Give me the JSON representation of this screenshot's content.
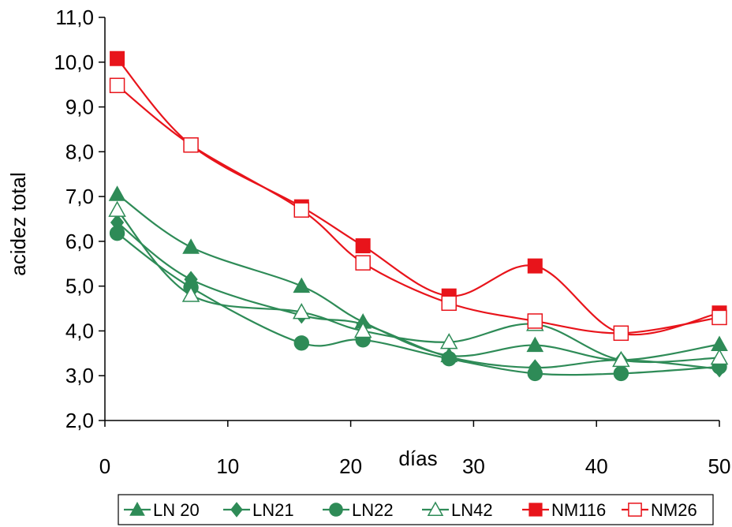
{
  "chart_data": {
    "type": "line",
    "xlabel": "días",
    "ylabel": "acidez total",
    "xlim": [
      0,
      50
    ],
    "ylim": [
      2.0,
      11.0
    ],
    "x_ticks": [
      "0",
      "10",
      "20",
      "30",
      "40",
      "50"
    ],
    "y_ticks": [
      "2,0",
      "3,0",
      "4,0",
      "5,0",
      "6,0",
      "7,0",
      "8,0",
      "9,0",
      "10,0",
      "11,0"
    ],
    "x": [
      1,
      7,
      16,
      21,
      28,
      35,
      42,
      50
    ],
    "legend_position": "bottom",
    "grid": false,
    "series": [
      {
        "name": "LN 20",
        "color": "#2e8b57",
        "marker": "triangle",
        "filled": true,
        "values": [
          7.05,
          5.87,
          5.0,
          4.2,
          3.45,
          3.68,
          3.35,
          3.7
        ]
      },
      {
        "name": "LN21",
        "color": "#2e8b57",
        "marker": "diamond",
        "filled": true,
        "values": [
          6.42,
          5.15,
          4.35,
          4.15,
          3.42,
          3.18,
          3.35,
          3.15
        ]
      },
      {
        "name": "LN22",
        "color": "#2e8b57",
        "marker": "circle",
        "filled": true,
        "values": [
          6.18,
          4.97,
          3.73,
          3.8,
          3.38,
          3.05,
          3.05,
          3.2
        ]
      },
      {
        "name": "LN42",
        "color": "#2e8b57",
        "marker": "triangle",
        "filled": false,
        "values": [
          6.7,
          4.8,
          4.42,
          4.0,
          3.75,
          4.15,
          3.35,
          3.4
        ]
      },
      {
        "name": "NM116",
        "color": "#e8141b",
        "marker": "square",
        "filled": true,
        "values": [
          10.08,
          8.15,
          6.77,
          5.9,
          4.78,
          5.45,
          3.95,
          4.4
        ]
      },
      {
        "name": "NM26",
        "color": "#e8141b",
        "marker": "square",
        "filled": false,
        "values": [
          9.48,
          8.15,
          6.7,
          5.52,
          4.62,
          4.22,
          3.95,
          4.3
        ]
      }
    ]
  }
}
